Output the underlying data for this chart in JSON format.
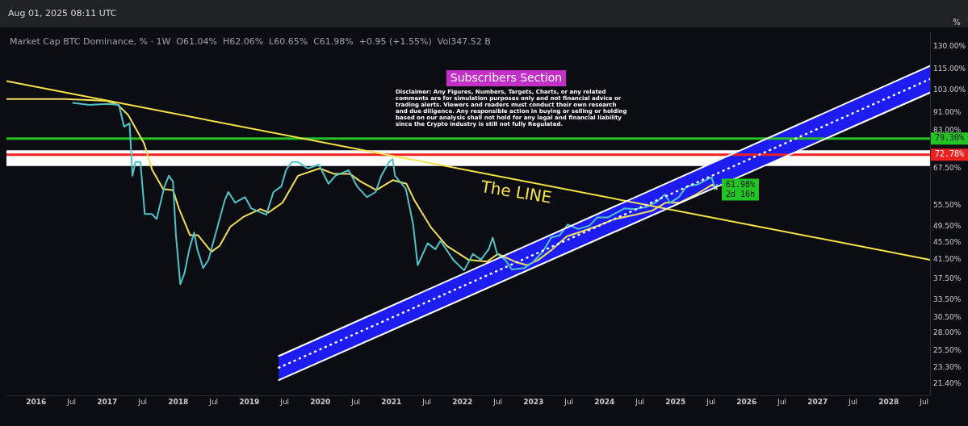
{
  "chart_data": {
    "type": "line",
    "title": "Subscribers Section",
    "subtitle": "Market Cap BTC Dominance, % · 1W  O61.04%  H62.06%  L60.65%  C61.98%  +0.95 (+1.55%)  Vol347.52 B",
    "ylabel": "%",
    "log": "y",
    "annotations": [
      "Aug 01, 2025 08:11 UTC",
      "Disclaimer: Any Figures, Numbers, Targets, Charts, or any related comments are for simulation purposes only and not financial advice or trading alerts. Viewers and readers must conduct their own research and due diligence. Any responsible action in buying or selling or holding based on our analysis shall not hold for any legal and financial liability since the Crypto industry is still not fully Regulated.",
      {
        "text": "The LINE",
        "x": "2022-10-15",
        "y": 63.6
      },
      "2d 16h"
    ],
    "xlim": [
      "2015-08",
      "2028-08"
    ],
    "xticks": [
      "2016",
      {
        "value": "2016-07",
        "label": "Jul"
      },
      "2017",
      {
        "value": "2017-07",
        "label": "Jul"
      },
      "2018",
      {
        "value": "2018-07",
        "label": "Jul"
      },
      "2019",
      {
        "value": "2019-07",
        "label": "Jul"
      },
      "2020",
      {
        "value": "2020-07",
        "label": "Jul"
      },
      "2021",
      {
        "value": "2021-07",
        "label": "Jul"
      },
      "2022",
      {
        "value": "2022-07",
        "label": "Jul"
      },
      "2023",
      {
        "value": "2023-07",
        "label": "Jul"
      },
      "2024",
      {
        "value": "2024-07",
        "label": "Jul"
      },
      "2025",
      {
        "value": "2025-07",
        "label": "Jul"
      },
      "2026",
      {
        "value": "2026-07",
        "label": "Jul"
      },
      "2027",
      {
        "value": "2027-07",
        "label": "Jul"
      },
      "2028",
      {
        "value": "2028-07",
        "label": "Jul"
      }
    ],
    "ylim": [
      20.1,
      140
    ],
    "yticks": [
      {
        "value": 21.4,
        "label": "21.40%"
      },
      {
        "value": 23.3,
        "label": "23.30%"
      },
      {
        "value": 25.5,
        "label": "25.50%"
      },
      {
        "value": 28,
        "label": "28.00%"
      },
      {
        "value": 30.5,
        "label": "30.50%"
      },
      {
        "value": 33.5,
        "label": "33.50%"
      },
      {
        "value": 37.5,
        "label": "37.50%"
      },
      {
        "value": 41.5,
        "label": "41.50%"
      },
      {
        "value": 45.5,
        "label": "45.50%"
      },
      {
        "value": 49.5,
        "label": "49.50%"
      },
      {
        "value": 55.5,
        "label": "55.50%"
      },
      {
        "value": 67.5,
        "label": "67.50%"
      },
      {
        "value": 83,
        "label": "83.00%"
      },
      {
        "value": 91,
        "label": "91.00%"
      },
      {
        "value": 103,
        "label": "103.00%"
      },
      {
        "value": 115,
        "label": "115.00%"
      },
      {
        "value": 130,
        "label": "130.00%"
      }
    ],
    "bands": [
      {
        "axis": "y",
        "from": 68.5,
        "to": 74.5,
        "color": "#ffffff"
      }
    ],
    "ref_lines": [
      {
        "axis": "y",
        "value": 79.3,
        "label": "79.30%",
        "color": "#22c322"
      },
      {
        "axis": "y",
        "value": 72.78,
        "label": "72.78%",
        "color": "#f02020"
      }
    ],
    "series": [
      {
        "color": "#ffffff",
        "line_style": "dotted",
        "x": [
          "2019-06",
          "2028-08"
        ],
        "values": [
          23.3,
          109
        ],
        "lower": [
          21.8,
          101.4
        ],
        "upper": [
          24.8,
          117
        ]
      },
      {
        "color": "#ffffff",
        "x": [
          "2019-06",
          "2028-08"
        ],
        "values": [
          24.8,
          117
        ]
      },
      {
        "color": "#ffffff",
        "x": [
          "2019-06",
          "2028-08"
        ],
        "values": [
          21.8,
          101.4
        ]
      },
      {
        "color": "#f5e34a",
        "x": [
          "2015-08",
          "2028-08"
        ],
        "values": [
          107.8,
          41.5
        ]
      },
      {
        "color": "#4fc3c7",
        "x": [
          "2016-07-08",
          "2016-10-01",
          "2017-01-01",
          "2017-03-01",
          "2017-03-27",
          "2017-04-25",
          "2017-05-10",
          "2017-05-25",
          "2017-06-20",
          "2017-07-12",
          "2017-08-18",
          "2017-09-12",
          "2017-10-22",
          "2017-11-14",
          "2017-12-05",
          "2017-12-20",
          "2018-01-12",
          "2018-02-03",
          "2018-02-28",
          "2018-03-22",
          "2018-04-08",
          "2018-05-08",
          "2018-06-05",
          "2018-07-01",
          "2018-08-01",
          "2018-08-28",
          "2018-09-16",
          "2018-10-20",
          "2018-12-10",
          "2019-01-12",
          "2019-03-28",
          "2019-05-04",
          "2019-06-14",
          "2019-07-08",
          "2019-08-08",
          "2019-09-06",
          "2019-10-30",
          "2019-12-24",
          "2020-02-13",
          "2020-03-18",
          "2020-05-25",
          "2020-07-08",
          "2020-08-28",
          "2020-10-12",
          "2020-11-10",
          "2020-12-20",
          "2021-01-08",
          "2021-01-20",
          "2021-03-15",
          "2021-04-22",
          "2021-05-15",
          "2021-07-05",
          "2021-08-15",
          "2021-09-10",
          "2021-11-15",
          "2022-01-10",
          "2022-02-25",
          "2022-04-05",
          "2022-05-15",
          "2022-06-05",
          "2022-06-28",
          "2022-08-08",
          "2022-09-12",
          "2022-11-16",
          "2022-12-28",
          "2023-02-20",
          "2023-04-01",
          "2023-05-15",
          "2023-06-25",
          "2023-08-18",
          "2023-10-15",
          "2023-11-25",
          "2024-01-18",
          "2024-04-12",
          "2024-06-05",
          "2024-08-05",
          "2024-09-28",
          "2024-11-06",
          "2024-12-05",
          "2025-01-18",
          "2025-02-28",
          "2025-04-22",
          "2025-06-15",
          "2025-07-05",
          "2025-07-22",
          "2025-08-01"
        ],
        "values": [
          96,
          95,
          95.5,
          95,
          84.5,
          86,
          65,
          70,
          70,
          53,
          53,
          51.6,
          61.4,
          65,
          63,
          47.3,
          36.4,
          38.6,
          43.9,
          48,
          43.9,
          39.7,
          41.5,
          45.9,
          51.6,
          57.1,
          59.6,
          56.3,
          58,
          54.6,
          52.8,
          59.6,
          61.4,
          67.1,
          70,
          70,
          67.6,
          69,
          62.3,
          65,
          67,
          61.4,
          58,
          59.6,
          65,
          70,
          71,
          65,
          60.6,
          50.1,
          40.3,
          45.3,
          43.9,
          45.9,
          41.5,
          39.2,
          42.8,
          41.5,
          43.9,
          46.7,
          42.8,
          41.5,
          39.4,
          39.7,
          40.9,
          43.4,
          46.7,
          47.3,
          50.1,
          48.9,
          49.8,
          52,
          52,
          54.6,
          54.4,
          55,
          56.6,
          58.8,
          56.3,
          58,
          61.4,
          62,
          63.9,
          64.4,
          60.6,
          61.98
        ],
        "value_labels": [
          null,
          null,
          null,
          null,
          null,
          null,
          null,
          null,
          null,
          null,
          null,
          null,
          null,
          null,
          null,
          null,
          null,
          null,
          null,
          null,
          null,
          null,
          null,
          null,
          null,
          null,
          null,
          null,
          null,
          null,
          null,
          null,
          null,
          null,
          null,
          null,
          null,
          null,
          null,
          null,
          null,
          null,
          null,
          null,
          null,
          null,
          null,
          null,
          null,
          null,
          null,
          null,
          null,
          null,
          null,
          null,
          null,
          null,
          null,
          null,
          null,
          null,
          null,
          null,
          null,
          null,
          null,
          null,
          null,
          null,
          null,
          null,
          null,
          null,
          null,
          null,
          null,
          null,
          null,
          null,
          null,
          null,
          null,
          null,
          null,
          "61.98%"
        ]
      },
      {
        "color": "#f2df5c",
        "x": [
          "2015-08-01",
          "2016-06-01",
          "2017-01-01",
          "2017-02-25",
          "2017-04-18",
          "2017-07-08",
          "2017-08-20",
          "2017-10-15",
          "2017-12-05",
          "2018-01-05",
          "2018-03-01",
          "2018-04-12",
          "2018-06-20",
          "2018-08-01",
          "2018-09-26",
          "2018-12-05",
          "2019-02-28",
          "2019-04-08",
          "2019-06-20",
          "2019-09-08",
          "2019-12-28",
          "2020-03-10",
          "2020-06-01",
          "2020-07-22",
          "2020-10-15",
          "2021-01-08",
          "2021-03-18",
          "2021-04-28",
          "2021-07-20",
          "2021-10-12",
          "2022-02-01",
          "2022-05-08",
          "2022-07-01",
          "2022-10-08",
          "2022-12-01",
          "2023-01-28",
          "2023-04-08",
          "2023-06-20",
          "2023-09-08",
          "2023-12-01",
          "2024-02-25",
          "2024-06-10",
          "2024-09-01",
          "2024-11-12",
          "2025-01-22",
          "2025-04-15",
          "2025-07-08",
          "2025-08-01"
        ],
        "values": [
          98,
          98,
          97,
          95,
          90,
          77.4,
          67,
          60.6,
          60.2,
          54.6,
          47.3,
          47.3,
          43.3,
          44.7,
          49.5,
          52.3,
          54.4,
          53.4,
          56.3,
          65,
          67.6,
          65.7,
          65.7,
          63.2,
          60.2,
          63.5,
          62.3,
          57.1,
          49.5,
          44.7,
          41.5,
          41.1,
          42.8,
          40.9,
          40.3,
          41.5,
          43.9,
          47,
          48.3,
          49.8,
          51.6,
          52.8,
          53.9,
          56.3,
          56.3,
          58.8,
          62,
          60.6
        ]
      }
    ]
  }
}
